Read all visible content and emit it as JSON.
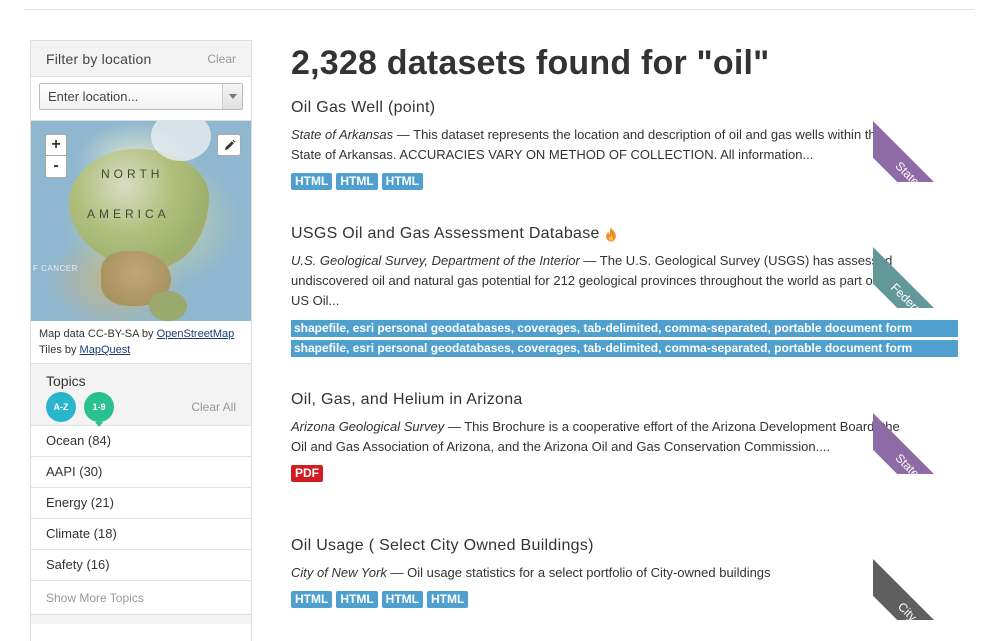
{
  "sidebar": {
    "filter_title": "Filter by location",
    "filter_clear": "Clear",
    "location_placeholder": "Enter location...",
    "map": {
      "label_north": "NORTH",
      "label_america": "AMERICA",
      "label_cancer": "F CANCER",
      "zoom_in": "+",
      "zoom_out": "-"
    },
    "attribution": {
      "map_data_prefix": "Map data CC-BY-SA by ",
      "map_data_link": "OpenStreetMap",
      "tiles_prefix": "Tiles by ",
      "tiles_link": "MapQuest"
    },
    "topics": {
      "title": "Topics",
      "sort_alpha": "A-Z",
      "sort_numeric": "1-9",
      "clear_all": "Clear All",
      "items": [
        {
          "label": "Ocean (84)"
        },
        {
          "label": "AAPI (30)"
        },
        {
          "label": "Energy (21)"
        },
        {
          "label": "Climate (18)"
        },
        {
          "label": "Safety (16)"
        }
      ],
      "show_more": "Show More Topics"
    }
  },
  "results": {
    "heading": "2,328 datasets found for \"oil\"",
    "datasets": [
      {
        "title": "Oil Gas Well (point)",
        "org": "State of Arkansas",
        "separator": " — ",
        "description": "This dataset represents the location and description of oil and gas wells within the State of Arkansas. ACCURACIES VARY ON METHOD OF COLLECTION. All information...",
        "formats": [
          "HTML",
          "HTML",
          "HTML"
        ],
        "ribbon": "State",
        "ribbon_color": "#8f6ba6"
      },
      {
        "title": "USGS Oil and Gas Assessment Database",
        "org": "U.S. Geological Survey, Department of the Interior",
        "separator": " — ",
        "description": "The U.S. Geological Survey (USGS) has assessed undiscovered oil and natural gas potential for 212 geological provinces throughout the world as part of the US Oil...",
        "formats": [
          "shapefile, esri personal geodatabases, coverages, tab-delimited, comma-separated, portable document form",
          "shapefile, esri personal geodatabases, coverages, tab-delimited, comma-separated, portable document form"
        ],
        "ribbon": "Federal",
        "ribbon_color": "#63989b"
      },
      {
        "title": "Oil, Gas, and Helium in Arizona",
        "org": "Arizona Geological Survey",
        "separator": " — ",
        "description": "This Brochure is a cooperative effort of the Arizona Development Board, the Oil and Gas Association of Arizona, and the Arizona Oil and Gas Conservation Commission....",
        "formats": [
          "PDF"
        ],
        "ribbon": "State",
        "ribbon_color": "#8f6ba6"
      },
      {
        "title": "Oil Usage ( Select City Owned Buildings)",
        "org": "City of New York",
        "separator": " — ",
        "description": "Oil usage statistics for a select portfolio of City-owned buildings",
        "formats": [
          "HTML",
          "HTML",
          "HTML",
          "HTML"
        ],
        "ribbon": "City",
        "ribbon_color": "#5f5f5f"
      }
    ]
  },
  "colors": {
    "format_badge": "#4fa0cf",
    "pdf_badge": "#d11d22",
    "sort_alpha": "#29b5cc",
    "sort_numeric": "#2bc08f"
  },
  "icons": {
    "popular": "flame-icon",
    "edit": "pencil-icon"
  }
}
